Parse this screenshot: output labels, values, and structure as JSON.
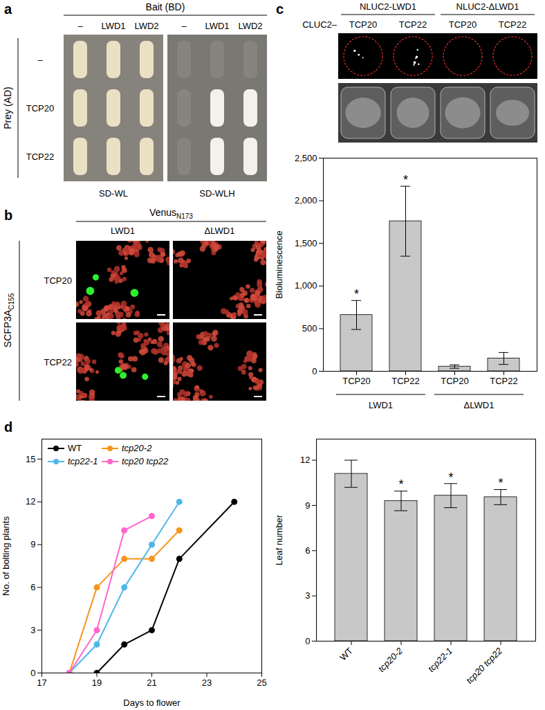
{
  "panels": [
    {
      "letter": "a",
      "header": "Bait (BD)",
      "columns": [
        "–",
        "LWD1",
        "LWD2"
      ],
      "side_label": "Prey (AD)",
      "rows": [
        "–",
        "TCP20",
        "TCP22"
      ],
      "plates": [
        {
          "label": "SD-WL",
          "growth": [
            [
              true,
              true,
              true
            ],
            [
              true,
              true,
              true
            ],
            [
              true,
              true,
              true
            ]
          ]
        },
        {
          "label": "SD-WLH",
          "growth": [
            [
              false,
              false,
              false
            ],
            [
              false,
              true,
              true
            ],
            [
              false,
              true,
              true
            ]
          ]
        }
      ]
    },
    {
      "letter": "b",
      "header": {
        "text": "Venus",
        "sub": "N173"
      },
      "columns": [
        "LWD1",
        "ΔLWD1"
      ],
      "side_label": {
        "text": "SCFP3A",
        "sub": "C155"
      },
      "rows": [
        "TCP20",
        "TCP22"
      ],
      "signal": [
        [
          true,
          false
        ],
        [
          true,
          false
        ]
      ]
    },
    {
      "letter": "c",
      "groups": [
        "NLUC2-LWD1",
        "NLUC2-ΔLWD1"
      ],
      "row_label": "CLUC2–",
      "wells": [
        "TCP20",
        "TCP22",
        "TCP20",
        "TCP22"
      ],
      "signal": [
        true,
        true,
        false,
        false
      ]
    },
    {
      "letter": "d"
    }
  ],
  "chart_data": [
    {
      "type": "bar",
      "ylabel": "Bioluminescence",
      "categories": [
        "TCP20",
        "TCP22",
        "TCP20",
        "TCP22"
      ],
      "groups": [
        "LWD1",
        "LWD1",
        "ΔLWD1",
        "ΔLWD1"
      ],
      "values": [
        660,
        1760,
        55,
        150
      ],
      "errors": [
        170,
        410,
        20,
        70
      ],
      "annotations": [
        "*",
        "*",
        null,
        null
      ],
      "color": "#c8c8c8",
      "ylim": [
        0,
        2500
      ],
      "yticks": [
        0,
        500,
        {
          "value": 1000,
          "label": "1,000"
        },
        {
          "value": 1500,
          "label": "1,500"
        },
        {
          "value": 2000,
          "label": "2,000"
        },
        {
          "value": 2500,
          "label": "2,500"
        }
      ]
    },
    {
      "type": "line",
      "xlabel": "Days to flower",
      "ylabel": "No. of bolting plants",
      "marker": "circle",
      "legend": "top-left",
      "series": [
        {
          "name": "WT",
          "color": "#000000",
          "x": [
            19,
            20,
            21,
            22,
            24
          ],
          "values": [
            0,
            2,
            3,
            8,
            12
          ]
        },
        {
          "name": "tcp20-2",
          "color": "#f7941d",
          "x": [
            18,
            19,
            20,
            21,
            22
          ],
          "values": [
            0,
            6,
            8,
            8,
            10
          ]
        },
        {
          "name": "tcp22-1",
          "color": "#4db8e8",
          "x": [
            18,
            19,
            20,
            21,
            22
          ],
          "values": [
            0,
            2,
            6,
            9,
            12
          ]
        },
        {
          "name": "tcp20 tcp22",
          "color": "#ff66cc",
          "x": [
            18,
            19,
            20,
            21
          ],
          "values": [
            0,
            3,
            10,
            11
          ]
        }
      ],
      "xlim": [
        17,
        25
      ],
      "xticks": [
        17,
        19,
        21,
        23,
        25
      ],
      "ylim": [
        0,
        16.4
      ],
      "yticks": [
        0,
        3,
        6,
        9,
        12,
        15
      ]
    },
    {
      "type": "bar",
      "ylabel": "Leaf number",
      "categories": [
        "WT",
        "tcp20-2",
        "tcp22-1",
        "tcp20 tcp22"
      ],
      "values": [
        11.1,
        9.3,
        9.65,
        9.55
      ],
      "errors": [
        0.9,
        0.65,
        0.8,
        0.5
      ],
      "annotations": [
        null,
        "*",
        "*",
        "*"
      ],
      "color": "#c8c8c8",
      "ylim": [
        0,
        13.4
      ],
      "yticks": [
        0,
        3,
        6,
        9,
        12
      ]
    }
  ]
}
